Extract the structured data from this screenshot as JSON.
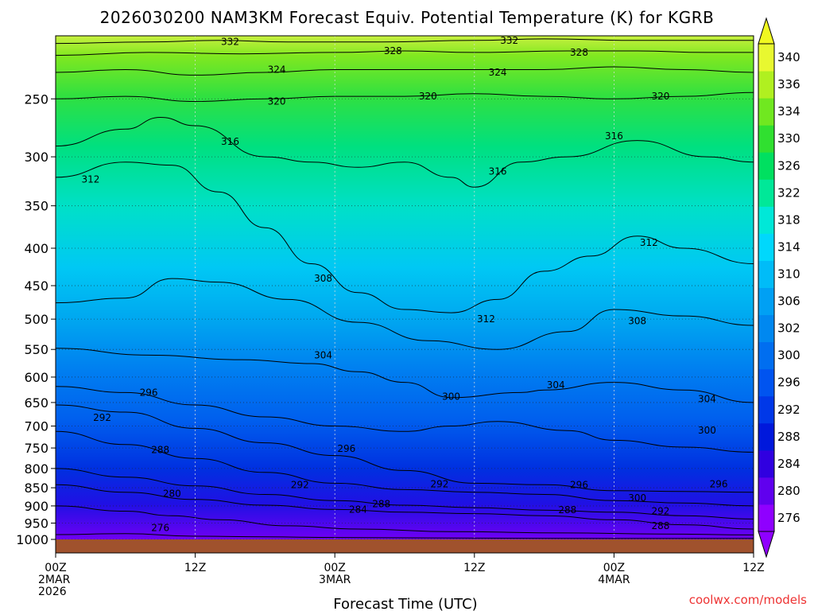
{
  "chart_data": {
    "type": "heatmap",
    "title": "2026030200 NAM3KM Forecast Equiv. Potential Temperature (K) for KGRB",
    "xlabel": "Forecast Time (UTC)",
    "ylabel": "",
    "x_ticks": [
      {
        "hour": 0,
        "lines": [
          "00Z",
          "2MAR",
          "2026"
        ]
      },
      {
        "hour": 12,
        "lines": [
          "12Z"
        ]
      },
      {
        "hour": 24,
        "lines": [
          "00Z",
          "3MAR"
        ]
      },
      {
        "hour": 36,
        "lines": [
          "12Z"
        ]
      },
      {
        "hour": 48,
        "lines": [
          "00Z",
          "4MAR"
        ]
      },
      {
        "hour": 60,
        "lines": [
          "12Z"
        ]
      }
    ],
    "xlim": [
      0,
      60
    ],
    "y_ticks": [
      250,
      300,
      350,
      400,
      450,
      500,
      550,
      600,
      650,
      700,
      750,
      800,
      850,
      900,
      950,
      1000
    ],
    "ylim": [
      1000,
      205
    ],
    "colorbar": {
      "ticks": [
        276,
        280,
        284,
        288,
        292,
        296,
        300,
        302,
        306,
        310,
        314,
        318,
        322,
        326,
        330,
        334,
        336,
        340
      ],
      "colors": [
        "#8f00ff",
        "#6000ee",
        "#3000e0",
        "#0018dc",
        "#0038e8",
        "#0054f0",
        "#006ef0",
        "#0088f0",
        "#00a0f4",
        "#00bcf8",
        "#00d8fc",
        "#00e8d8",
        "#00e898",
        "#00e060",
        "#30e030",
        "#70e820",
        "#b0f020",
        "#e8f830"
      ]
    },
    "contour_interval": 4,
    "contours": [
      {
        "value": 276,
        "label": "276",
        "points": [
          [
            0,
            985
          ],
          [
            6,
            982
          ],
          [
            12,
            990
          ],
          [
            18,
            992
          ],
          [
            24,
            994
          ],
          [
            36,
            996
          ],
          [
            48,
            997
          ],
          [
            60,
            997
          ]
        ]
      },
      {
        "value": 280,
        "label": "280",
        "points": [
          [
            0,
            900
          ],
          [
            6,
            915
          ],
          [
            10,
            928
          ],
          [
            14,
            940
          ],
          [
            20,
            958
          ],
          [
            26,
            968
          ],
          [
            34,
            976
          ],
          [
            44,
            980
          ],
          [
            52,
            983
          ],
          [
            60,
            986
          ]
        ]
      },
      {
        "value": 284,
        "label": "284",
        "points": [
          [
            0,
            842
          ],
          [
            6,
            862
          ],
          [
            12,
            882
          ],
          [
            18,
            898
          ],
          [
            24,
            910
          ],
          [
            30,
            918
          ],
          [
            36,
            922
          ],
          [
            42,
            928
          ],
          [
            48,
            940
          ],
          [
            54,
            955
          ],
          [
            60,
            968
          ]
        ]
      },
      {
        "value": 288,
        "label": "288",
        "points": [
          [
            0,
            800
          ],
          [
            6,
            822
          ],
          [
            12,
            845
          ],
          [
            18,
            868
          ],
          [
            24,
            885
          ],
          [
            30,
            898
          ],
          [
            36,
            905
          ],
          [
            42,
            912
          ],
          [
            48,
            918
          ],
          [
            54,
            928
          ],
          [
            60,
            938
          ]
        ]
      },
      {
        "value": 292,
        "label": "292",
        "points": [
          [
            0,
            712
          ],
          [
            6,
            742
          ],
          [
            12,
            775
          ],
          [
            18,
            810
          ],
          [
            24,
            838
          ],
          [
            30,
            855
          ],
          [
            36,
            862
          ],
          [
            42,
            868
          ],
          [
            48,
            885
          ],
          [
            54,
            892
          ],
          [
            60,
            900
          ]
        ]
      },
      {
        "value": 296,
        "label": "296",
        "points": [
          [
            0,
            655
          ],
          [
            6,
            670
          ],
          [
            12,
            705
          ],
          [
            18,
            738
          ],
          [
            24,
            768
          ],
          [
            30,
            805
          ],
          [
            36,
            838
          ],
          [
            42,
            842
          ],
          [
            48,
            858
          ],
          [
            54,
            860
          ],
          [
            60,
            862
          ]
        ]
      },
      {
        "value": 300,
        "label": "300",
        "points": [
          [
            0,
            618
          ],
          [
            6,
            630
          ],
          [
            12,
            655
          ],
          [
            18,
            680
          ],
          [
            24,
            700
          ],
          [
            30,
            712
          ],
          [
            34,
            700
          ],
          [
            38,
            690
          ],
          [
            44,
            710
          ],
          [
            48,
            732
          ],
          [
            54,
            748
          ],
          [
            60,
            760
          ]
        ]
      },
      {
        "value": 304,
        "label": "304",
        "points": [
          [
            0,
            548
          ],
          [
            8,
            560
          ],
          [
            16,
            568
          ],
          [
            22,
            575
          ],
          [
            26,
            590
          ],
          [
            30,
            610
          ],
          [
            34,
            640
          ],
          [
            40,
            630
          ],
          [
            42,
            625
          ],
          [
            48,
            610
          ],
          [
            54,
            625
          ],
          [
            60,
            650
          ]
        ]
      },
      {
        "value": 308,
        "label": "308",
        "points": [
          [
            0,
            475
          ],
          [
            6,
            468
          ],
          [
            10,
            440
          ],
          [
            14,
            445
          ],
          [
            20,
            470
          ],
          [
            26,
            505
          ],
          [
            32,
            535
          ],
          [
            38,
            550
          ],
          [
            44,
            520
          ],
          [
            48,
            485
          ],
          [
            54,
            495
          ],
          [
            60,
            510
          ]
        ]
      },
      {
        "value": 312,
        "label": "312",
        "points": [
          [
            0,
            320
          ],
          [
            6,
            305
          ],
          [
            10,
            308
          ],
          [
            14,
            335
          ],
          [
            18,
            375
          ],
          [
            22,
            420
          ],
          [
            26,
            460
          ],
          [
            30,
            485
          ],
          [
            34,
            490
          ],
          [
            38,
            470
          ],
          [
            42,
            430
          ],
          [
            46,
            410
          ],
          [
            50,
            385
          ],
          [
            54,
            400
          ],
          [
            60,
            420
          ]
        ]
      },
      {
        "value": 316,
        "label": "316",
        "points": [
          [
            0,
            290
          ],
          [
            6,
            275
          ],
          [
            9,
            265
          ],
          [
            12,
            272
          ],
          [
            18,
            300
          ],
          [
            22,
            305
          ],
          [
            26,
            310
          ],
          [
            30,
            305
          ],
          [
            34,
            320
          ],
          [
            36,
            330
          ],
          [
            40,
            305
          ],
          [
            44,
            300
          ],
          [
            50,
            285
          ],
          [
            56,
            300
          ],
          [
            60,
            305
          ]
        ]
      },
      {
        "value": 320,
        "label": "320",
        "points": [
          [
            0,
            250
          ],
          [
            6,
            248
          ],
          [
            12,
            252
          ],
          [
            18,
            250
          ],
          [
            24,
            248
          ],
          [
            30,
            248
          ],
          [
            36,
            246
          ],
          [
            42,
            248
          ],
          [
            48,
            250
          ],
          [
            54,
            248
          ],
          [
            60,
            245
          ]
        ]
      },
      {
        "value": 324,
        "label": "324",
        "points": [
          [
            0,
            230
          ],
          [
            6,
            228
          ],
          [
            12,
            232
          ],
          [
            18,
            230
          ],
          [
            24,
            228
          ],
          [
            30,
            228
          ],
          [
            36,
            228
          ],
          [
            42,
            228
          ],
          [
            48,
            226
          ],
          [
            54,
            228
          ],
          [
            60,
            230
          ]
        ]
      },
      {
        "value": 328,
        "label": "328",
        "points": [
          [
            0,
            218
          ],
          [
            8,
            216
          ],
          [
            16,
            217
          ],
          [
            24,
            216
          ],
          [
            30,
            215
          ],
          [
            36,
            216
          ],
          [
            44,
            215
          ],
          [
            50,
            215
          ],
          [
            56,
            216
          ],
          [
            60,
            216
          ]
        ]
      },
      {
        "value": 332,
        "label": "332",
        "points": [
          [
            0,
            210
          ],
          [
            8,
            209
          ],
          [
            14,
            208
          ],
          [
            20,
            209
          ],
          [
            28,
            209
          ],
          [
            36,
            208
          ],
          [
            42,
            207
          ],
          [
            50,
            208
          ],
          [
            60,
            208
          ]
        ]
      }
    ],
    "contour_labels": [
      {
        "text": "332",
        "hour": 15,
        "p": 209
      },
      {
        "text": "328",
        "hour": 29,
        "p": 215
      },
      {
        "text": "332",
        "hour": 39,
        "p": 208
      },
      {
        "text": "328",
        "hour": 45,
        "p": 216
      },
      {
        "text": "324",
        "hour": 19,
        "p": 228
      },
      {
        "text": "324",
        "hour": 38,
        "p": 230
      },
      {
        "text": "320",
        "hour": 19,
        "p": 252
      },
      {
        "text": "320",
        "hour": 32,
        "p": 248
      },
      {
        "text": "320",
        "hour": 52,
        "p": 248
      },
      {
        "text": "316",
        "hour": 15,
        "p": 286
      },
      {
        "text": "316",
        "hour": 48,
        "p": 281
      },
      {
        "text": "316",
        "hour": 38,
        "p": 314
      },
      {
        "text": "312",
        "hour": 3,
        "p": 322
      },
      {
        "text": "312",
        "hour": 51,
        "p": 393
      },
      {
        "text": "308",
        "hour": 23,
        "p": 440
      },
      {
        "text": "312",
        "hour": 37,
        "p": 500
      },
      {
        "text": "308",
        "hour": 50,
        "p": 503
      },
      {
        "text": "304",
        "hour": 23,
        "p": 560
      },
      {
        "text": "304",
        "hour": 43,
        "p": 615
      },
      {
        "text": "296",
        "hour": 8,
        "p": 630
      },
      {
        "text": "300",
        "hour": 34,
        "p": 638
      },
      {
        "text": "304",
        "hour": 56,
        "p": 643
      },
      {
        "text": "292",
        "hour": 4,
        "p": 682
      },
      {
        "text": "300",
        "hour": 56,
        "p": 710
      },
      {
        "text": "288",
        "hour": 9,
        "p": 755
      },
      {
        "text": "296",
        "hour": 25,
        "p": 752
      },
      {
        "text": "292",
        "hour": 21,
        "p": 842
      },
      {
        "text": "292",
        "hour": 33,
        "p": 840
      },
      {
        "text": "296",
        "hour": 45,
        "p": 842
      },
      {
        "text": "296",
        "hour": 57,
        "p": 840
      },
      {
        "text": "280",
        "hour": 10,
        "p": 866
      },
      {
        "text": "288",
        "hour": 28,
        "p": 895
      },
      {
        "text": "284",
        "hour": 26,
        "p": 910
      },
      {
        "text": "300",
        "hour": 50,
        "p": 878
      },
      {
        "text": "288",
        "hour": 44,
        "p": 912
      },
      {
        "text": "292",
        "hour": 52,
        "p": 915
      },
      {
        "text": "288",
        "hour": 52,
        "p": 958
      },
      {
        "text": "276",
        "hour": 9,
        "p": 964
      }
    ]
  },
  "credit": "coolwx.com/models"
}
